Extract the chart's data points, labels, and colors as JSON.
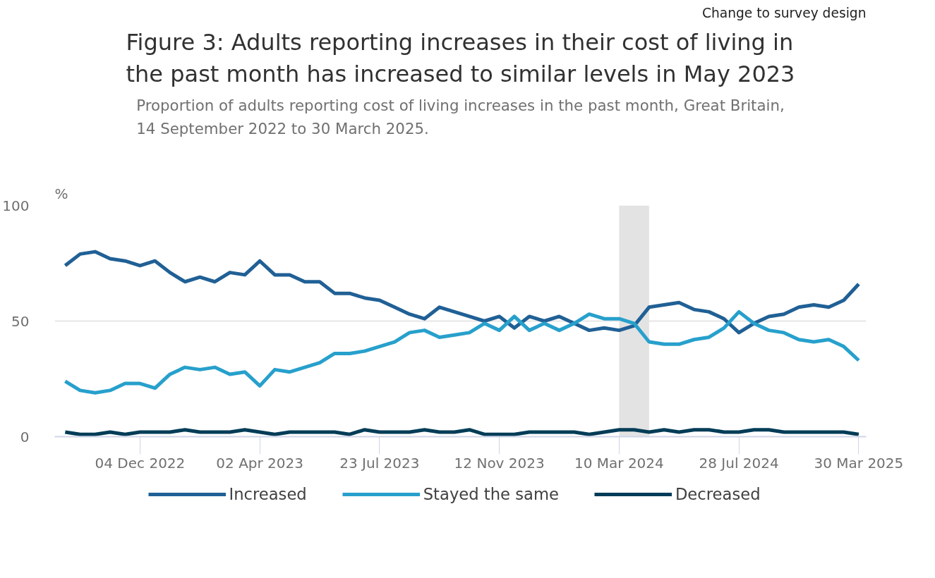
{
  "chart_data": {
    "type": "line",
    "title": "Figure 3: Adults reporting increases in their cost of living in the past month has increased to similar levels in May 2023",
    "subtitle": "Proportion of adults reporting cost of living increases in the past month, Great Britain, 14 September 2022 to 30 March 2025.",
    "ylabel": "%",
    "categories": [
      null,
      null,
      null,
      null,
      null,
      "04 Dec 2022",
      null,
      null,
      null,
      null,
      null,
      null,
      null,
      "02 Apr 2023",
      null,
      null,
      null,
      null,
      null,
      null,
      null,
      "23 Jul 2023",
      null,
      null,
      null,
      null,
      null,
      null,
      null,
      "12 Nov 2023",
      null,
      null,
      null,
      null,
      null,
      null,
      null,
      "10 Mar 2024",
      null,
      null,
      null,
      null,
      null,
      null,
      null,
      "28 Jul 2024",
      null,
      null,
      null,
      null,
      null,
      null,
      null,
      "30 Mar 2025"
    ],
    "series": [
      {
        "name": "Increased",
        "color": "#206095",
        "values": [
          74,
          79,
          80,
          77,
          76,
          74,
          76,
          71,
          67,
          69,
          67,
          71,
          70,
          76,
          70,
          70,
          67,
          67,
          62,
          62,
          60,
          59,
          56,
          53,
          51,
          56,
          54,
          52,
          50,
          52,
          47,
          52,
          50,
          52,
          49,
          46,
          47,
          46,
          48,
          56,
          57,
          58,
          55,
          54,
          51,
          45,
          49,
          52,
          53,
          56,
          57,
          56,
          59,
          66
        ]
      },
      {
        "name": "Stayed the same",
        "color": "#27a0cc",
        "values": [
          24,
          20,
          19,
          20,
          23,
          23,
          21,
          27,
          30,
          29,
          30,
          27,
          28,
          22,
          29,
          28,
          30,
          32,
          36,
          36,
          37,
          39,
          41,
          45,
          46,
          43,
          44,
          45,
          49,
          46,
          52,
          46,
          49,
          46,
          49,
          53,
          51,
          51,
          49,
          41,
          40,
          40,
          42,
          43,
          47,
          54,
          49,
          46,
          45,
          42,
          41,
          42,
          39,
          33
        ]
      },
      {
        "name": "Decreased",
        "color": "#003c57",
        "values": [
          2,
          1,
          1,
          2,
          1,
          2,
          2,
          2,
          3,
          2,
          2,
          2,
          3,
          2,
          1,
          2,
          2,
          2,
          2,
          1,
          3,
          2,
          2,
          2,
          3,
          2,
          2,
          3,
          1,
          1,
          1,
          2,
          2,
          2,
          2,
          1,
          2,
          3,
          3,
          2,
          3,
          2,
          3,
          3,
          2,
          2,
          3,
          3,
          2,
          2,
          2,
          2,
          2,
          1
        ]
      }
    ],
    "ylim": [
      0,
      100
    ],
    "yticks": [
      0,
      50,
      100
    ],
    "grid": "y",
    "legend": "bottom",
    "line_style": "solid",
    "annotations": [
      "Change to survey design"
    ]
  }
}
